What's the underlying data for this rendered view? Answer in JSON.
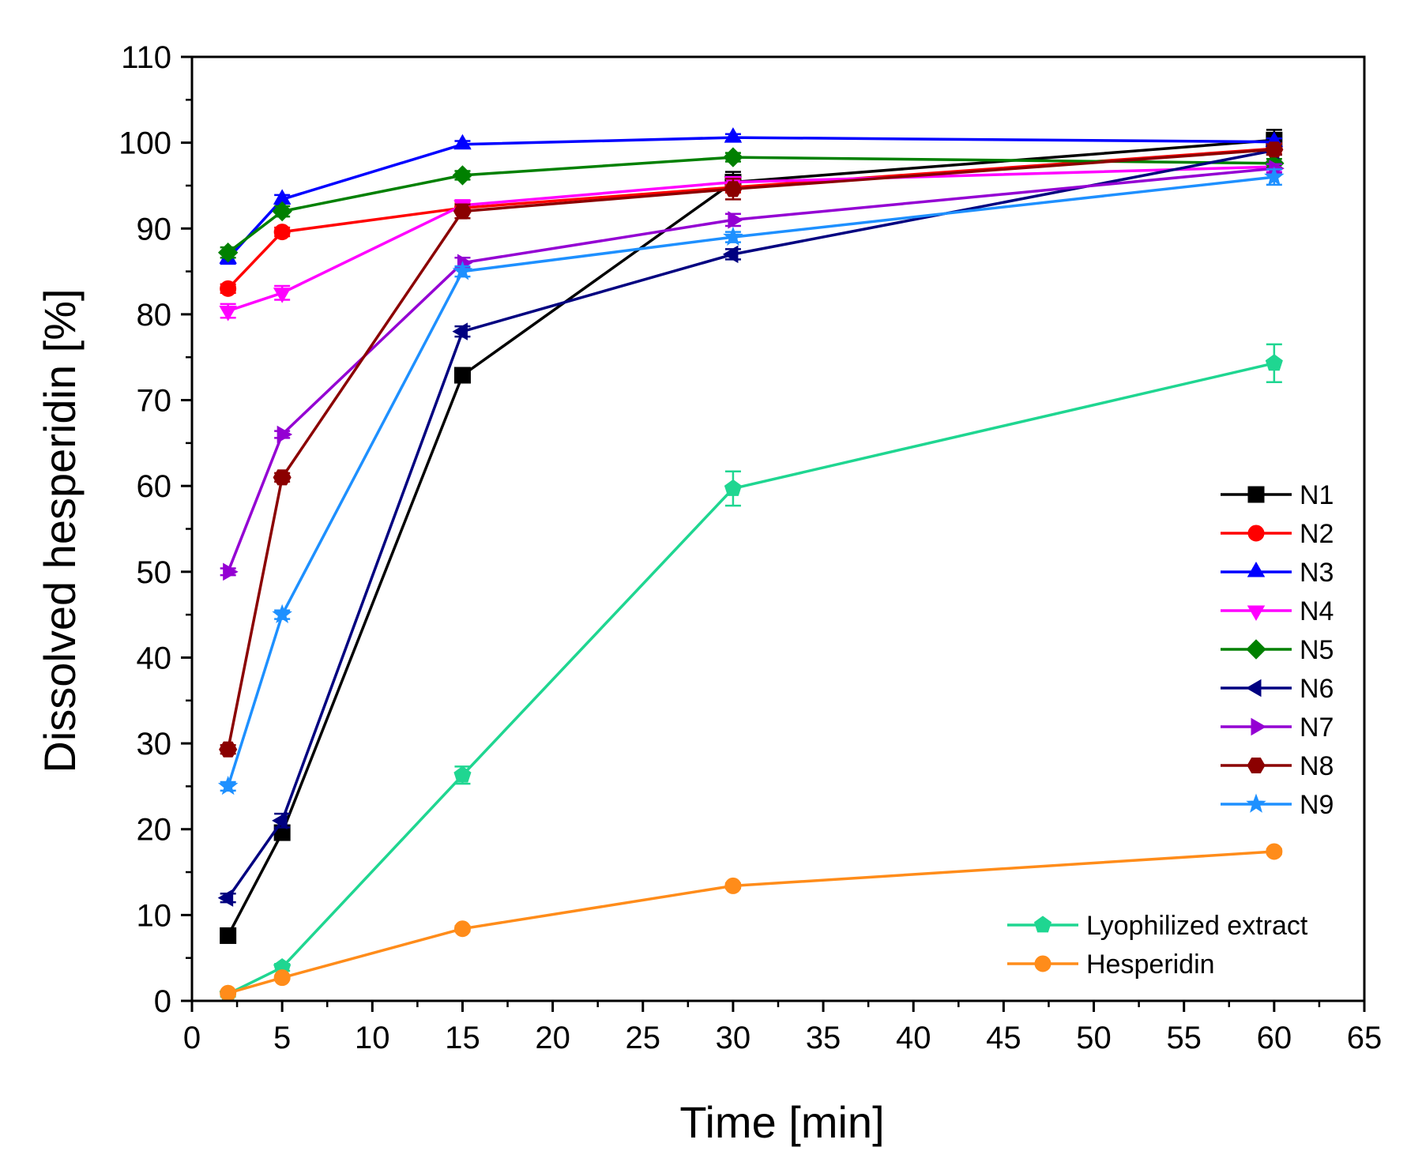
{
  "chart_data": {
    "type": "line",
    "title": "",
    "xlabel": "Time [min]",
    "ylabel": "Dissolved hesperidin [%]",
    "xlim": [
      0,
      65
    ],
    "ylim": [
      0,
      110
    ],
    "xticks": [
      0,
      5,
      10,
      15,
      20,
      25,
      30,
      35,
      40,
      45,
      50,
      55,
      60,
      65
    ],
    "yticks": [
      0,
      10,
      20,
      30,
      40,
      50,
      60,
      70,
      80,
      90,
      100,
      110
    ],
    "grid": false,
    "legend_position": "right",
    "x": [
      2,
      5,
      15,
      30,
      60
    ],
    "series": [
      {
        "name": "N1",
        "color": "#000000",
        "marker": "square",
        "values": [
          7.6,
          19.6,
          72.9,
          95.4,
          100.3
        ],
        "errors": [
          0.8,
          0.8,
          0.7,
          1.2,
          1.2
        ]
      },
      {
        "name": "N2",
        "color": "#ff0000",
        "marker": "circle",
        "values": [
          83.0,
          89.6,
          92.4,
          94.8,
          99.3
        ],
        "errors": [
          0.5,
          0.5,
          0.5,
          0.6,
          0.6
        ]
      },
      {
        "name": "N3",
        "color": "#0000ff",
        "marker": "triangle-up",
        "values": [
          86.5,
          93.4,
          99.8,
          100.6,
          100.1
        ],
        "errors": [
          0.6,
          0.5,
          0.4,
          0.4,
          0.4
        ]
      },
      {
        "name": "N4",
        "color": "#ff00ff",
        "marker": "triangle-down",
        "values": [
          80.4,
          82.5,
          92.7,
          95.4,
          97.2
        ],
        "errors": [
          0.8,
          0.8,
          0.6,
          0.6,
          0.6
        ]
      },
      {
        "name": "N5",
        "color": "#008000",
        "marker": "diamond",
        "values": [
          87.2,
          92.0,
          96.2,
          98.3,
          97.6
        ],
        "errors": [
          0.6,
          0.6,
          0.5,
          0.5,
          0.5
        ]
      },
      {
        "name": "N6",
        "color": "#000080",
        "marker": "triangle-left",
        "values": [
          12.0,
          21.0,
          78.0,
          87.0,
          99.1
        ],
        "errors": [
          0.5,
          0.8,
          0.6,
          0.6,
          0.5
        ]
      },
      {
        "name": "N7",
        "color": "#9400d3",
        "marker": "triangle-right",
        "values": [
          50.0,
          66.0,
          86.0,
          91.0,
          97.0
        ],
        "errors": [
          0.4,
          0.4,
          0.6,
          0.7,
          0.5
        ]
      },
      {
        "name": "N8",
        "color": "#8b0000",
        "marker": "hexagon",
        "values": [
          29.3,
          61.0,
          92.0,
          94.6,
          99.2
        ],
        "errors": [
          0.5,
          0.5,
          0.8,
          1.2,
          0.6
        ]
      },
      {
        "name": "N9",
        "color": "#1e90ff",
        "marker": "star",
        "values": [
          25.0,
          45.0,
          85.0,
          89.0,
          96.0
        ],
        "errors": [
          0.5,
          0.5,
          0.6,
          0.6,
          0.9
        ]
      },
      {
        "name": "Lyophilized extract",
        "color": "#1fd691",
        "marker": "pentagon",
        "values": [
          0.8,
          3.9,
          26.3,
          59.7,
          74.3
        ],
        "errors": [
          0.3,
          0.4,
          1.0,
          2.0,
          2.2
        ]
      },
      {
        "name": "Hesperidin",
        "color": "#ff8c1a",
        "marker": "circle",
        "values": [
          0.9,
          2.7,
          8.4,
          13.4,
          17.4
        ],
        "errors": [
          0.2,
          0.2,
          0.3,
          0.3,
          0.3
        ]
      }
    ]
  }
}
